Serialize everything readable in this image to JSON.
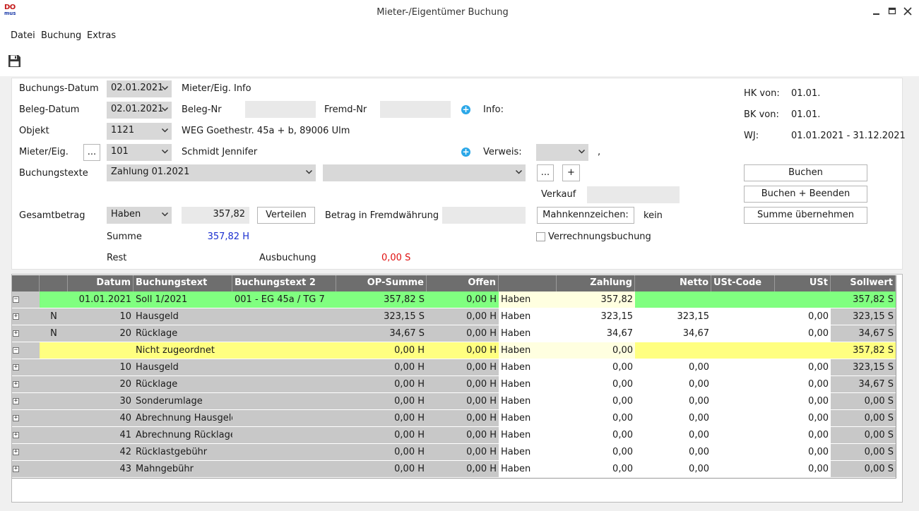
{
  "window": {
    "title": "Mieter-/Eigentümer Buchung",
    "logo_top": "DO",
    "logo_bottom": "mus"
  },
  "menu": [
    "Datei",
    "Buchung",
    "Extras"
  ],
  "form": {
    "buchungs_datum_label": "Buchungs-Datum",
    "buchungs_datum": "02.01.2021",
    "mieter_info_label": "Mieter/Eig. Info",
    "beleg_datum_label": "Beleg-Datum",
    "beleg_datum": "02.01.2021",
    "beleg_nr_label": "Beleg-Nr",
    "fremd_nr_label": "Fremd-Nr",
    "info_label": "Info:",
    "objekt_label": "Objekt",
    "objekt": "1121",
    "objekt_text": "WEG Goethestr. 45a + b, 89006 Ulm",
    "mieter_label": "Mieter/Eig.",
    "mieter_btn": "...",
    "mieter": "101",
    "mieter_name": "Schmidt Jennifer",
    "verweis_label": "Verweis:",
    "verweis_suffix": ",",
    "buchungstexte_label": "Buchungstexte",
    "buchungstext1": "Zahlung 01.2021",
    "buchungstext2": "",
    "dots_btn": "...",
    "plus_btn": "+",
    "verkauf_label": "Verkauf",
    "gesamtbetrag_label": "Gesamtbetrag",
    "gesamt_type": "Haben",
    "gesamt_value": "357,82",
    "verteilen_btn": "Verteilen",
    "fremdwaehrung_label": "Betrag in Fremdwährung",
    "mahnkennzeichen_btn": "Mahnkennzeichen:",
    "mahnkennzeichen_value": "kein",
    "summe_label": "Summe",
    "summe_value": "357,82 H",
    "verrechnung_label": "Verrechnungsbuchung",
    "rest_label": "Rest",
    "ausbuchung_label": "Ausbuchung",
    "ausbuchung_value": "0,00 S",
    "hk_label": "HK von:",
    "hk_value": "01.01.",
    "bk_label": "BK von:",
    "bk_value": "01.01.",
    "wj_label": "WJ:",
    "wj_value": "01.01.2021 - 31.12.2021",
    "buchen_btn": "Buchen",
    "buchen_beenden_btn": "Buchen + Beenden",
    "summe_uebernehmen_btn": "Summe übernehmen"
  },
  "grid": {
    "headers": [
      "",
      "",
      "Datum",
      "Buchungstext",
      "Buchungstext 2",
      "OP-Summe",
      "Offen",
      "",
      "Zahlung",
      "Netto",
      "USt-Code",
      "USt",
      "Sollwert"
    ],
    "rows": [
      {
        "exp": "−",
        "flag": "",
        "datum": "01.01.2021",
        "text": "Soll 1/2021",
        "text2": "001 - EG  45a / TG 7",
        "op": "357,82 S",
        "offen": "0,00 H",
        "art": "Haben",
        "zahlung": "357,82",
        "netto": "",
        "ustcode": "",
        "ust": "",
        "soll": "357,82 S",
        "style": "green"
      },
      {
        "exp": "+",
        "flag": "N",
        "datum": "10",
        "text": "Hausgeld",
        "text2": "",
        "op": "323,15 S",
        "offen": "0,00 H",
        "art": "Haben",
        "zahlung": "323,15",
        "netto": "323,15",
        "ustcode": "",
        "ust": "0,00",
        "soll": "323,15 S",
        "style": "sub"
      },
      {
        "exp": "+",
        "flag": "N",
        "datum": "20",
        "text": "Rücklage",
        "text2": "",
        "op": "34,67 S",
        "offen": "0,00 H",
        "art": "Haben",
        "zahlung": "34,67",
        "netto": "34,67",
        "ustcode": "",
        "ust": "0,00",
        "soll": "34,67 S",
        "style": "sub"
      },
      {
        "exp": "−",
        "flag": "",
        "datum": "",
        "text": "Nicht zugeordnet",
        "text2": "",
        "op": "0,00 H",
        "offen": "0,00 H",
        "art": "Haben",
        "zahlung": "0,00",
        "netto": "",
        "ustcode": "",
        "ust": "",
        "soll": "357,82 S",
        "style": "yellow"
      },
      {
        "exp": "+",
        "flag": "",
        "datum": "10",
        "text": "Hausgeld",
        "text2": "",
        "op": "0,00 H",
        "offen": "0,00 H",
        "art": "Haben",
        "zahlung": "0,00",
        "netto": "0,00",
        "ustcode": "",
        "ust": "0,00",
        "soll": "323,15 S",
        "style": "sub"
      },
      {
        "exp": "+",
        "flag": "",
        "datum": "20",
        "text": "Rücklage",
        "text2": "",
        "op": "0,00 H",
        "offen": "0,00 H",
        "art": "Haben",
        "zahlung": "0,00",
        "netto": "0,00",
        "ustcode": "",
        "ust": "0,00",
        "soll": "34,67 S",
        "style": "sub"
      },
      {
        "exp": "+",
        "flag": "",
        "datum": "30",
        "text": "Sonderumlage",
        "text2": "",
        "op": "0,00 H",
        "offen": "0,00 H",
        "art": "Haben",
        "zahlung": "0,00",
        "netto": "0,00",
        "ustcode": "",
        "ust": "0,00",
        "soll": "0,00 S",
        "style": "sub"
      },
      {
        "exp": "+",
        "flag": "",
        "datum": "40",
        "text": "Abrechnung Hausgeld",
        "text2": "",
        "op": "0,00 H",
        "offen": "0,00 H",
        "art": "Haben",
        "zahlung": "0,00",
        "netto": "0,00",
        "ustcode": "",
        "ust": "0,00",
        "soll": "0,00 S",
        "style": "sub"
      },
      {
        "exp": "+",
        "flag": "",
        "datum": "41",
        "text": "Abrechnung Rücklage",
        "text2": "",
        "op": "0,00 H",
        "offen": "0,00 H",
        "art": "Haben",
        "zahlung": "0,00",
        "netto": "0,00",
        "ustcode": "",
        "ust": "0,00",
        "soll": "0,00 S",
        "style": "sub"
      },
      {
        "exp": "+",
        "flag": "",
        "datum": "42",
        "text": "Rücklastgebühr",
        "text2": "",
        "op": "0,00 H",
        "offen": "0,00 H",
        "art": "Haben",
        "zahlung": "0,00",
        "netto": "0,00",
        "ustcode": "",
        "ust": "0,00",
        "soll": "0,00 S",
        "style": "sub"
      },
      {
        "exp": "+",
        "flag": "",
        "datum": "43",
        "text": "Mahngebühr",
        "text2": "",
        "op": "0,00 H",
        "offen": "0,00 H",
        "art": "Haben",
        "zahlung": "0,00",
        "netto": "0,00",
        "ustcode": "",
        "ust": "0,00",
        "soll": "0,00 S",
        "style": "sub"
      }
    ]
  },
  "colors": {
    "summe": "#1a2fd0",
    "ausbuchung": "#e01010",
    "green_row": "#80ff80",
    "yellow_row": "#ffff80",
    "header": "#6e6e6e"
  },
  "icons": {
    "save": "floppy-disk-icon"
  }
}
